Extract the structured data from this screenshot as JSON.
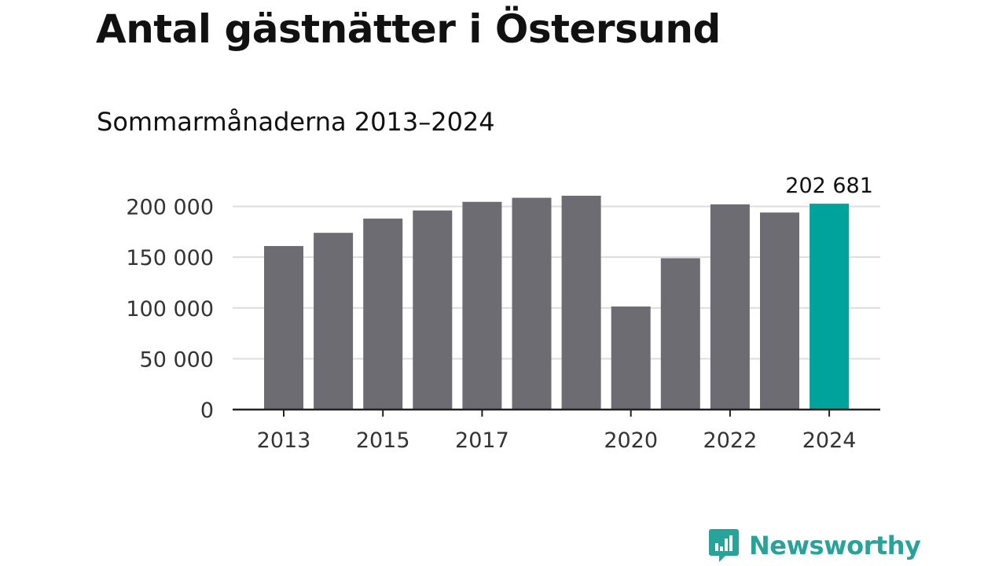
{
  "title": "Antal gästnätter i Östersund",
  "subtitle": "Sommarmånaderna 2013–2024",
  "brand": {
    "name": "Newsworthy",
    "logo_icon": "newsworthy-bar-chart-icon"
  },
  "colors": {
    "bar": "#6d6c72",
    "highlight": "#00a39b",
    "grid": "#dddddd",
    "axis": "#222222",
    "brand": "#28a39a"
  },
  "chart_data": {
    "type": "bar",
    "categories": [
      "2013",
      "2014",
      "2015",
      "2016",
      "2017",
      "2018",
      "2019",
      "2020",
      "2021",
      "2022",
      "2023",
      "2024"
    ],
    "values": [
      161000,
      174000,
      188000,
      196000,
      204500,
      208500,
      210500,
      101500,
      149000,
      202000,
      194000,
      202681
    ],
    "highlight_index": 11,
    "annotation": "202 681",
    "x_tick_labels": [
      "2013",
      "",
      "2015",
      "",
      "2017",
      "",
      "",
      "2020",
      "",
      "2022",
      "",
      "2024"
    ],
    "y_ticks": [
      0,
      50000,
      100000,
      150000,
      200000
    ],
    "y_tick_labels": [
      "0",
      "50 000",
      "100 000",
      "150 000",
      "200 000"
    ],
    "ylim": [
      0,
      210500
    ],
    "grid": true,
    "legend": "none",
    "xlabel": "",
    "ylabel": ""
  }
}
